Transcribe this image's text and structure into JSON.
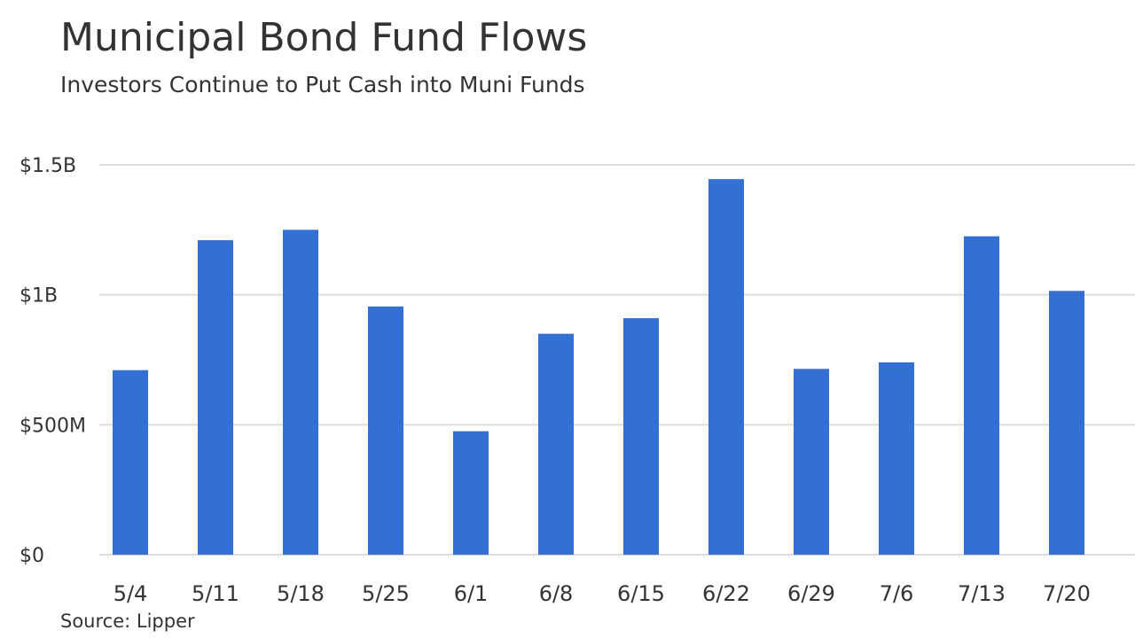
{
  "chart_data": {
    "type": "bar",
    "title": "Municipal Bond Fund Flows",
    "subtitle": "Investors Continue to Put Cash into Muni Funds",
    "source": "Source: Lipper",
    "categories": [
      "5/4",
      "5/11",
      "5/18",
      "5/25",
      "6/1",
      "6/8",
      "6/15",
      "6/22",
      "6/29",
      "7/6",
      "7/13",
      "7/20"
    ],
    "values": [
      710000000,
      1210000000,
      1250000000,
      955000000,
      475000000,
      850000000,
      910000000,
      1445000000,
      715000000,
      740000000,
      1225000000,
      1015000000
    ],
    "color": "#3470d4",
    "ylim": [
      0,
      1500000000
    ],
    "yticks": [
      {
        "value": 0,
        "label": "$0"
      },
      {
        "value": 500000000,
        "label": "$500M"
      },
      {
        "value": 1000000000,
        "label": "$1B"
      },
      {
        "value": 1500000000,
        "label": "$1.5B"
      }
    ],
    "grid": true
  }
}
